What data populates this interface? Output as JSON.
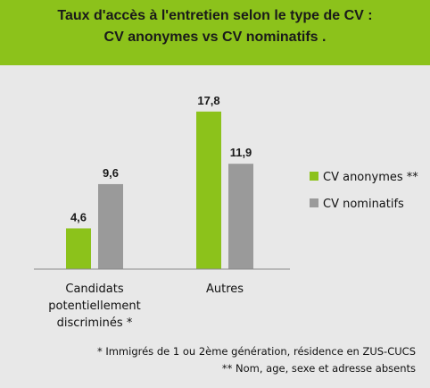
{
  "title_line1": "Taux d'accès à l'entretien selon le type de CV  :",
  "title_line2": "CV anonymes vs CV nominatifs .",
  "footnotes": [
    "* Immigrés de 1 ou 2ème génération, résidence en ZUS-CUCS",
    "** Nom, age,  sexe et adresse absents"
  ],
  "colors": {
    "header_bg": "#8cc21b",
    "anonymes": "#8cc21b",
    "nominatifs": "#9a9a9a",
    "background": "#e8e8e8"
  },
  "chart_data": {
    "type": "bar",
    "categories": [
      [
        "Candidats",
        "potentiellement",
        "discriminés *"
      ],
      [
        "Autres"
      ]
    ],
    "series": [
      {
        "name": "CV anonymes **",
        "values": [
          4.6,
          17.8
        ],
        "labels": [
          "4,6",
          "17,8"
        ]
      },
      {
        "name": "CV nominatifs",
        "values": [
          9.6,
          11.9
        ],
        "labels": [
          "9,6",
          "11,9"
        ]
      }
    ],
    "ylim": [
      0,
      20
    ],
    "legend": "right",
    "grid": false
  }
}
